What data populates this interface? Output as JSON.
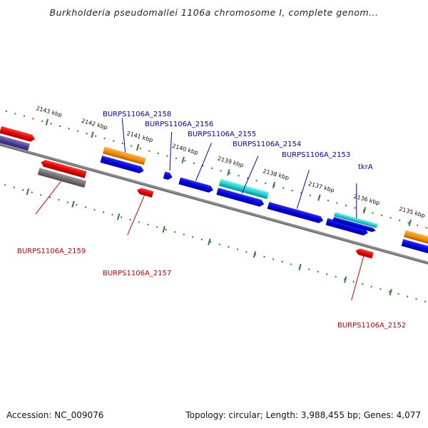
{
  "title": "Burkholderia pseudomallei 1106a chromosome I, complete genom...",
  "footer": {
    "accession": "Accession: NC_009076",
    "summary": "Topology: circular; Length: 3,988,455 bp; Genes: 4,077"
  },
  "colors": {
    "forward_label": "#0000b4",
    "reverse_label": "#c80000",
    "tick": "#2e7d32",
    "backbone": "#7a7a7a"
  },
  "scale": {
    "ticks": [
      {
        "label": "2143 kbp"
      },
      {
        "label": "2142 kbp"
      },
      {
        "label": "2141 kbp"
      },
      {
        "label": "2140 kbp"
      },
      {
        "label": "2139 kbp"
      },
      {
        "label": "2138 kbp"
      },
      {
        "label": "2137 kbp"
      },
      {
        "label": "2136 kbp"
      },
      {
        "label": "2135 kbp"
      }
    ]
  },
  "genes": {
    "forward": [
      {
        "label": "BURPS1106A_2158"
      },
      {
        "label": "BURPS1106A_2156"
      },
      {
        "label": "BURPS1106A_2155"
      },
      {
        "label": "BURPS1106A_2154"
      },
      {
        "label": "BURPS1106A_2153"
      },
      {
        "label": "tkrA"
      }
    ],
    "reverse": [
      {
        "label": "BURPS1106A_2159"
      },
      {
        "label": "BURPS1106A_2157"
      },
      {
        "label": "BURPS1106A_2152"
      }
    ]
  }
}
